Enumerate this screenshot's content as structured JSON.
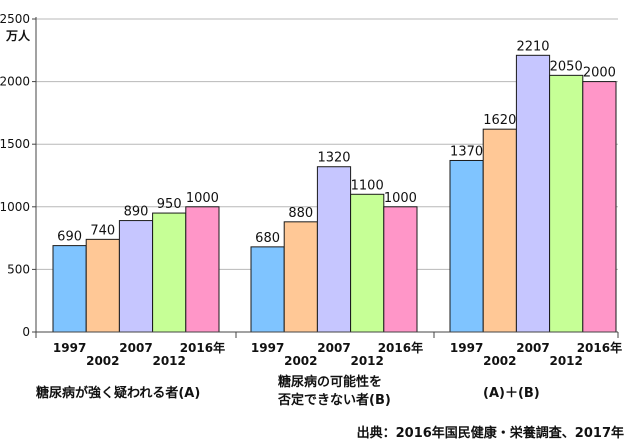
{
  "chart_data": {
    "type": "bar",
    "unit": "万人",
    "ylim": [
      0,
      2500
    ],
    "yticks": [
      0,
      500,
      1000,
      1500,
      2000,
      2500
    ],
    "grid": true,
    "series_colors": [
      "#7fc4ff",
      "#ffc896",
      "#c6c6ff",
      "#c6ff96",
      "#ff96c8"
    ],
    "groups": [
      {
        "label_lines": [
          "糖尿病が強く疑われる者(A)"
        ],
        "years": [
          "1997",
          "2002",
          "2007",
          "2012",
          "2016年"
        ],
        "values": [
          690,
          740,
          890,
          950,
          1000
        ]
      },
      {
        "label_lines": [
          "糖尿病の可能性を",
          "否定できない者(B)"
        ],
        "years": [
          "1997",
          "2002",
          "2007",
          "2012",
          "2016年"
        ],
        "values": [
          680,
          880,
          1320,
          1100,
          1000
        ]
      },
      {
        "label_lines": [
          "(A)＋(B)"
        ],
        "years": [
          "1997",
          "2002",
          "2007",
          "2012",
          "2016年"
        ],
        "values": [
          1370,
          1620,
          2210,
          2050,
          2000
        ]
      }
    ]
  },
  "source": "出典：2016年国民健康・栄養調査、2017年"
}
